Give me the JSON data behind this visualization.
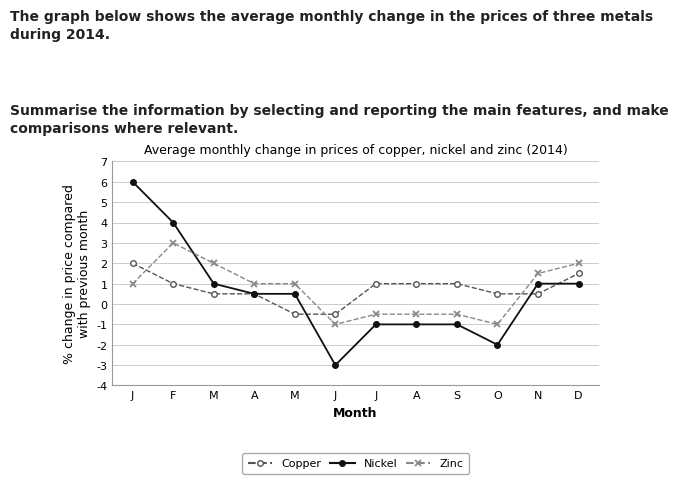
{
  "title": "Average monthly change in prices of copper, nickel and zinc (2014)",
  "xlabel": "Month",
  "ylabel": "% change in price compared\nwith previous month",
  "months": [
    "J",
    "F",
    "M",
    "A",
    "M",
    "J",
    "J",
    "A",
    "S",
    "O",
    "N",
    "D"
  ],
  "copper": [
    2,
    1,
    0.5,
    0.5,
    -0.5,
    -0.5,
    1,
    1,
    1,
    0.5,
    0.5,
    1.5
  ],
  "nickel": [
    6,
    4,
    1,
    0.5,
    0.5,
    -3,
    -1,
    -1,
    -1,
    -2,
    1,
    1
  ],
  "zinc": [
    1,
    3,
    2,
    1,
    1,
    -1,
    -0.5,
    -0.5,
    -0.5,
    -1,
    1.5,
    2
  ],
  "ylim": [
    -4,
    7
  ],
  "yticks": [
    -4,
    -3,
    -2,
    -1,
    0,
    1,
    2,
    3,
    4,
    5,
    6,
    7
  ],
  "copper_color": "#555555",
  "nickel_color": "#111111",
  "zinc_color": "#888888",
  "grid_color": "#cccccc",
  "title_fontsize": 9,
  "axis_label_fontsize": 9,
  "tick_fontsize": 8,
  "legend_fontsize": 8,
  "header1": "The graph below shows the average monthly change in the prices of three metals\nduring 2014.",
  "header2": "Summarise the information by selecting and reporting the main features, and make\ncomparisons where relevant.",
  "header_fontsize": 10
}
